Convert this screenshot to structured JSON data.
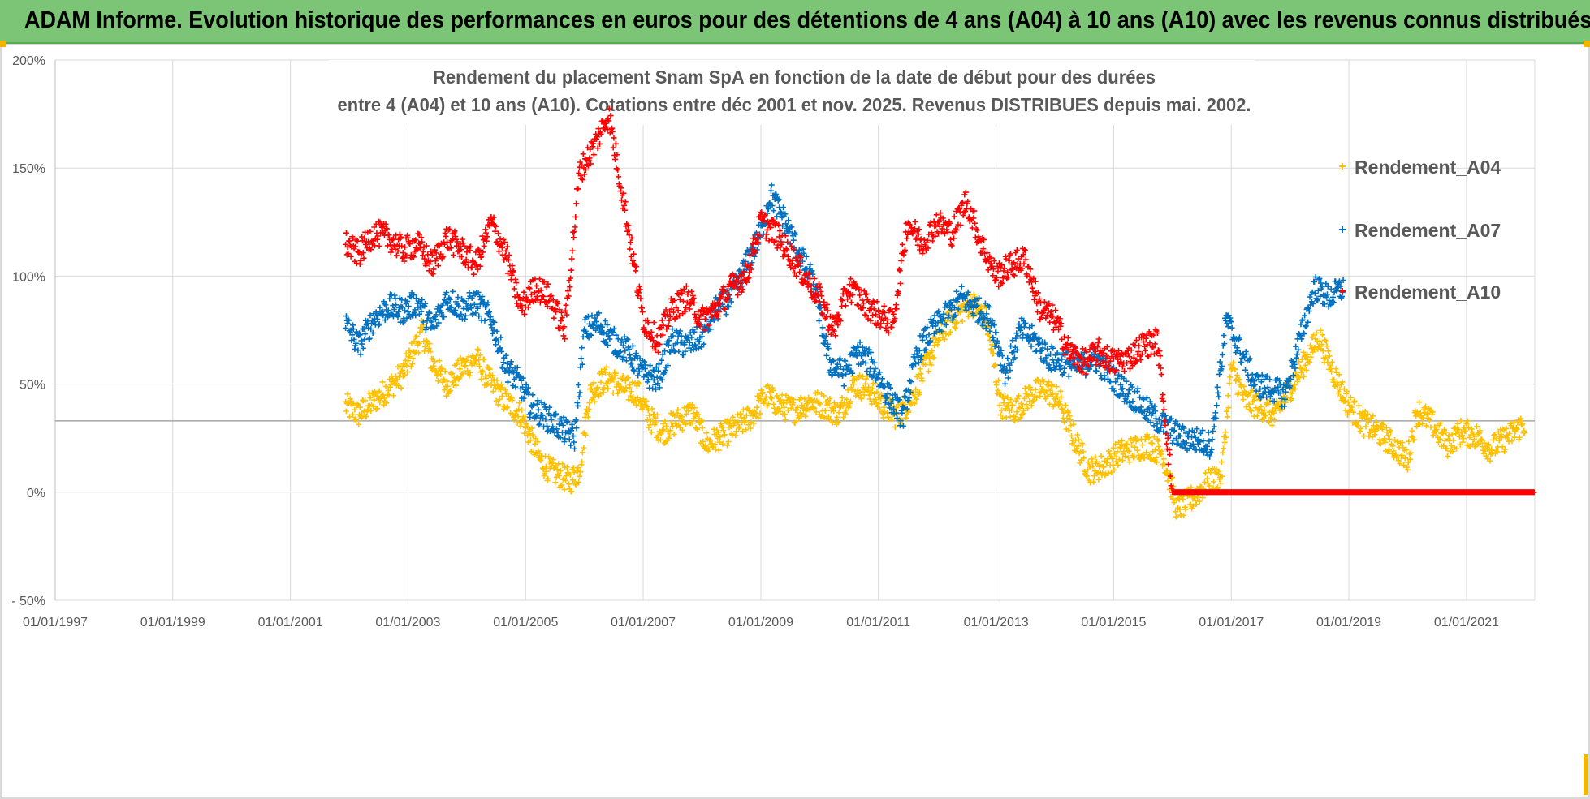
{
  "header": {
    "title": "ADAM Informe. Evolution historique des performances en euros pour des détentions de 4 ans (A04) à 10 ans (A10) avec les revenus connus distribués"
  },
  "chart_data": {
    "type": "scatter",
    "title_lines": [
      "Rendement du placement Snam SpA en fonction de la date de début pour des durées",
      "entre 4 (A04) et 10 ans (A10).  Cotations entre déc 2001 et nov. 2025.  Revenus DISTRIBUES depuis mai. 2002."
    ],
    "xlabel": "",
    "ylabel": "",
    "x_tick_labels": [
      "01/01/1997",
      "01/01/1999",
      "01/01/2001",
      "01/01/2003",
      "01/01/2005",
      "01/01/2007",
      "01/01/2009",
      "01/01/2011",
      "01/01/2013",
      "01/01/2015",
      "01/01/2017",
      "01/01/2019",
      "01/01/2021"
    ],
    "y_tick_labels": [
      "- 50%",
      "0%",
      "50%",
      "100%",
      "150%",
      "200%"
    ],
    "y_ticks": [
      -50,
      0,
      50,
      100,
      150,
      200
    ],
    "xlim": [
      "1997-01-01",
      "2022-03-01"
    ],
    "ylim": [
      -50,
      200
    ],
    "grid": true,
    "reference_line_y": 33,
    "legend_position": "right",
    "series": [
      {
        "name": "Rendement_A04",
        "color": "#ffc000",
        "points": [
          [
            "2001-12-10",
            40
          ],
          [
            "2002-03-01",
            36
          ],
          [
            "2002-06-01",
            42
          ],
          [
            "2002-09-01",
            48
          ],
          [
            "2002-12-01",
            55
          ],
          [
            "2003-02-01",
            65
          ],
          [
            "2003-04-01",
            74
          ],
          [
            "2003-06-01",
            60
          ],
          [
            "2003-09-01",
            50
          ],
          [
            "2003-12-01",
            57
          ],
          [
            "2004-03-01",
            62
          ],
          [
            "2004-06-01",
            50
          ],
          [
            "2004-09-01",
            42
          ],
          [
            "2004-12-01",
            36
          ],
          [
            "2005-02-01",
            25
          ],
          [
            "2005-04-01",
            15
          ],
          [
            "2005-06-01",
            10
          ],
          [
            "2005-08-01",
            8
          ],
          [
            "2005-10-01",
            5
          ],
          [
            "2005-12-01",
            10
          ],
          [
            "2006-02-01",
            45
          ],
          [
            "2006-04-01",
            50
          ],
          [
            "2006-06-01",
            53
          ],
          [
            "2006-09-01",
            48
          ],
          [
            "2006-12-01",
            46
          ],
          [
            "2007-02-01",
            35
          ],
          [
            "2007-05-01",
            28
          ],
          [
            "2007-08-01",
            33
          ],
          [
            "2007-11-01",
            37
          ],
          [
            "2008-02-01",
            22
          ],
          [
            "2008-05-01",
            26
          ],
          [
            "2008-08-01",
            30
          ],
          [
            "2008-11-01",
            35
          ],
          [
            "2009-02-01",
            45
          ],
          [
            "2009-05-01",
            40
          ],
          [
            "2009-08-01",
            38
          ],
          [
            "2009-11-01",
            42
          ],
          [
            "2010-02-01",
            40
          ],
          [
            "2010-05-01",
            36
          ],
          [
            "2010-08-01",
            50
          ],
          [
            "2010-11-01",
            48
          ],
          [
            "2011-02-01",
            40
          ],
          [
            "2011-05-01",
            35
          ],
          [
            "2011-08-01",
            44
          ],
          [
            "2011-11-01",
            60
          ],
          [
            "2012-02-01",
            75
          ],
          [
            "2012-05-01",
            82
          ],
          [
            "2012-08-01",
            88
          ],
          [
            "2012-11-01",
            80
          ],
          [
            "2013-02-01",
            40
          ],
          [
            "2013-05-01",
            38
          ],
          [
            "2013-08-01",
            45
          ],
          [
            "2013-11-01",
            48
          ],
          [
            "2014-02-01",
            42
          ],
          [
            "2014-05-01",
            25
          ],
          [
            "2014-08-01",
            10
          ],
          [
            "2014-11-01",
            12
          ],
          [
            "2015-02-01",
            18
          ],
          [
            "2015-05-01",
            20
          ],
          [
            "2015-08-01",
            22
          ],
          [
            "2015-11-01",
            18
          ],
          [
            "2016-02-01",
            -8
          ],
          [
            "2016-05-01",
            -3
          ],
          [
            "2016-08-01",
            4
          ],
          [
            "2016-11-01",
            8
          ],
          [
            "2017-01-01",
            58
          ],
          [
            "2017-04-01",
            42
          ],
          [
            "2017-07-01",
            40
          ],
          [
            "2017-10-01",
            35
          ],
          [
            "2018-01-01",
            48
          ],
          [
            "2018-04-01",
            60
          ],
          [
            "2018-07-01",
            72
          ],
          [
            "2018-10-01",
            55
          ],
          [
            "2019-01-01",
            40
          ],
          [
            "2019-04-01",
            32
          ],
          [
            "2019-07-01",
            28
          ],
          [
            "2019-10-01",
            22
          ],
          [
            "2020-01-01",
            15
          ],
          [
            "2020-03-01",
            38
          ],
          [
            "2020-06-01",
            32
          ],
          [
            "2020-09-01",
            22
          ],
          [
            "2020-12-01",
            28
          ],
          [
            "2021-03-01",
            26
          ],
          [
            "2021-06-01",
            20
          ],
          [
            "2021-09-01",
            25
          ],
          [
            "2022-01-01",
            32
          ]
        ]
      },
      {
        "name": "Rendement_A07",
        "color": "#0070c0",
        "points": [
          [
            "2001-12-10",
            78
          ],
          [
            "2002-03-01",
            68
          ],
          [
            "2002-06-01",
            80
          ],
          [
            "2002-09-01",
            86
          ],
          [
            "2002-12-01",
            84
          ],
          [
            "2003-03-01",
            88
          ],
          [
            "2003-06-01",
            76
          ],
          [
            "2003-09-01",
            90
          ],
          [
            "2003-12-01",
            85
          ],
          [
            "2004-03-01",
            88
          ],
          [
            "2004-06-01",
            80
          ],
          [
            "2004-09-01",
            58
          ],
          [
            "2004-12-01",
            50
          ],
          [
            "2005-02-01",
            40
          ],
          [
            "2005-05-01",
            35
          ],
          [
            "2005-08-01",
            30
          ],
          [
            "2005-11-01",
            25
          ],
          [
            "2006-01-01",
            75
          ],
          [
            "2006-04-01",
            78
          ],
          [
            "2006-07-01",
            70
          ],
          [
            "2006-10-01",
            65
          ],
          [
            "2007-01-01",
            55
          ],
          [
            "2007-04-01",
            52
          ],
          [
            "2007-07-01",
            70
          ],
          [
            "2007-10-01",
            68
          ],
          [
            "2008-01-01",
            72
          ],
          [
            "2008-04-01",
            85
          ],
          [
            "2008-07-01",
            90
          ],
          [
            "2008-10-01",
            105
          ],
          [
            "2009-01-01",
            120
          ],
          [
            "2009-03-01",
            138
          ],
          [
            "2009-06-01",
            125
          ],
          [
            "2009-09-01",
            110
          ],
          [
            "2009-12-01",
            95
          ],
          [
            "2010-03-01",
            60
          ],
          [
            "2010-06-01",
            55
          ],
          [
            "2010-09-01",
            65
          ],
          [
            "2010-12-01",
            58
          ],
          [
            "2011-03-01",
            45
          ],
          [
            "2011-06-01",
            35
          ],
          [
            "2011-09-01",
            65
          ],
          [
            "2011-12-01",
            75
          ],
          [
            "2012-03-01",
            82
          ],
          [
            "2012-06-01",
            90
          ],
          [
            "2012-09-01",
            85
          ],
          [
            "2012-12-01",
            80
          ],
          [
            "2013-03-01",
            55
          ],
          [
            "2013-06-01",
            75
          ],
          [
            "2013-09-01",
            70
          ],
          [
            "2013-12-01",
            62
          ],
          [
            "2014-03-01",
            60
          ],
          [
            "2014-06-01",
            58
          ],
          [
            "2014-09-01",
            62
          ],
          [
            "2014-12-01",
            55
          ],
          [
            "2015-03-01",
            48
          ],
          [
            "2015-06-01",
            42
          ],
          [
            "2015-09-01",
            35
          ],
          [
            "2015-12-01",
            30
          ],
          [
            "2016-03-01",
            25
          ],
          [
            "2016-06-01",
            24
          ],
          [
            "2016-09-01",
            22
          ],
          [
            "2016-12-01",
            80
          ],
          [
            "2017-03-01",
            65
          ],
          [
            "2017-06-01",
            50
          ],
          [
            "2017-09-01",
            48
          ],
          [
            "2017-12-01",
            45
          ],
          [
            "2018-03-01",
            70
          ],
          [
            "2018-06-01",
            95
          ],
          [
            "2018-09-01",
            90
          ],
          [
            "2018-12-01",
            95
          ]
        ]
      },
      {
        "name": "Rendement_A10",
        "color": "#ff0000",
        "points": [
          [
            "2001-12-10",
            115
          ],
          [
            "2002-03-01",
            110
          ],
          [
            "2002-06-01",
            120
          ],
          [
            "2002-09-01",
            118
          ],
          [
            "2002-12-01",
            112
          ],
          [
            "2003-03-01",
            115
          ],
          [
            "2003-06-01",
            105
          ],
          [
            "2003-09-01",
            118
          ],
          [
            "2003-12-01",
            112
          ],
          [
            "2004-03-01",
            105
          ],
          [
            "2004-06-01",
            125
          ],
          [
            "2004-09-01",
            110
          ],
          [
            "2004-12-01",
            85
          ],
          [
            "2005-03-01",
            95
          ],
          [
            "2005-06-01",
            90
          ],
          [
            "2005-09-01",
            75
          ],
          [
            "2005-12-01",
            148
          ],
          [
            "2006-03-01",
            160
          ],
          [
            "2006-06-01",
            175
          ],
          [
            "2006-09-01",
            135
          ],
          [
            "2007-01-01",
            80
          ],
          [
            "2007-04-01",
            70
          ],
          [
            "2007-07-01",
            85
          ],
          [
            "2007-10-01",
            90
          ],
          [
            "2008-01-01",
            80
          ],
          [
            "2008-04-01",
            85
          ],
          [
            "2008-07-01",
            95
          ],
          [
            "2008-10-01",
            100
          ],
          [
            "2009-01-01",
            125
          ],
          [
            "2009-04-01",
            120
          ],
          [
            "2009-07-01",
            110
          ],
          [
            "2009-10-01",
            100
          ],
          [
            "2010-01-01",
            90
          ],
          [
            "2010-04-01",
            75
          ],
          [
            "2010-07-01",
            95
          ],
          [
            "2010-10-01",
            88
          ],
          [
            "2011-01-01",
            82
          ],
          [
            "2011-04-01",
            78
          ],
          [
            "2011-07-01",
            125
          ],
          [
            "2011-10-01",
            115
          ],
          [
            "2012-01-01",
            125
          ],
          [
            "2012-04-01",
            120
          ],
          [
            "2012-07-01",
            135
          ],
          [
            "2012-10-01",
            115
          ],
          [
            "2013-01-01",
            100
          ],
          [
            "2013-04-01",
            105
          ],
          [
            "2013-07-01",
            108
          ],
          [
            "2013-10-01",
            85
          ],
          [
            "2014-01-01",
            80
          ],
          [
            "2014-04-01",
            65
          ],
          [
            "2014-07-01",
            60
          ],
          [
            "2014-10-01",
            65
          ],
          [
            "2015-01-01",
            60
          ],
          [
            "2015-04-01",
            62
          ],
          [
            "2015-07-01",
            68
          ],
          [
            "2015-10-01",
            70
          ],
          [
            "2016-01-01",
            0
          ],
          [
            "2017-01-01",
            0
          ],
          [
            "2018-01-01",
            0
          ],
          [
            "2019-01-01",
            0
          ],
          [
            "2020-01-01",
            0
          ],
          [
            "2021-01-01",
            0
          ],
          [
            "2022-03-01",
            0
          ]
        ]
      }
    ]
  }
}
